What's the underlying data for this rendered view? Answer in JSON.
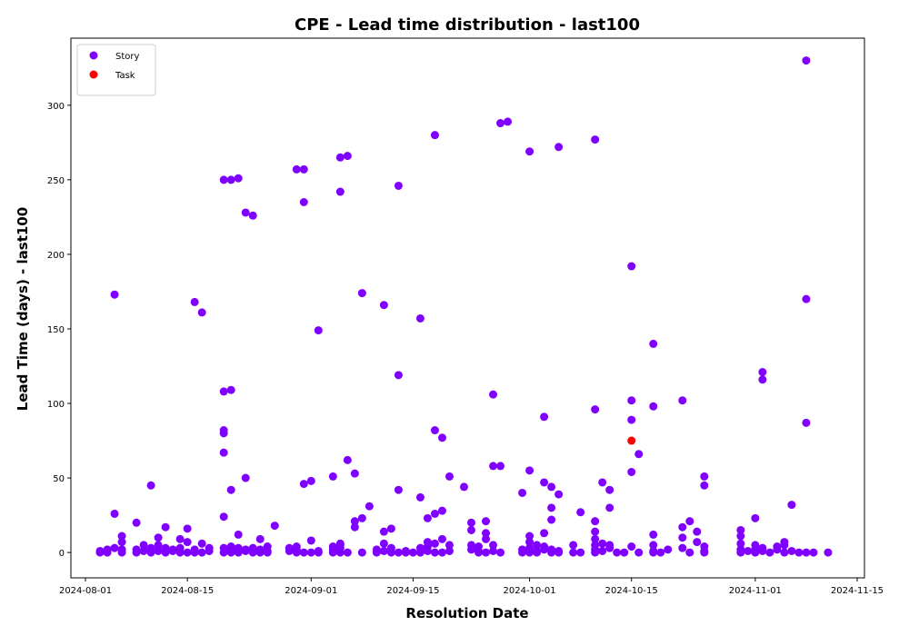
{
  "chart_data": {
    "type": "scatter",
    "title": "CPE - Lead time distribution - last100",
    "xlabel": "Resolution Date",
    "ylabel": "Lead Time (days) - last100",
    "x_axis": "date",
    "xlim": [
      "2024-07-30",
      "2024-11-16"
    ],
    "ylim": [
      -17,
      345
    ],
    "x_ticks": [
      "2024-08-01",
      "2024-08-15",
      "2024-09-01",
      "2024-09-15",
      "2024-10-01",
      "2024-10-15",
      "2024-11-01",
      "2024-11-15"
    ],
    "y_ticks": [
      0,
      50,
      100,
      150,
      200,
      250,
      300
    ],
    "grid": false,
    "legend_position": "top-left",
    "series": [
      {
        "name": "Story",
        "color": "#7f00ff",
        "points": [
          [
            "2024-08-03",
            0
          ],
          [
            "2024-08-03",
            1
          ],
          [
            "2024-08-04",
            2
          ],
          [
            "2024-08-04",
            0
          ],
          [
            "2024-08-05",
            3
          ],
          [
            "2024-08-05",
            26
          ],
          [
            "2024-08-05",
            173
          ],
          [
            "2024-08-06",
            2
          ],
          [
            "2024-08-06",
            7
          ],
          [
            "2024-08-06",
            11
          ],
          [
            "2024-08-06",
            0
          ],
          [
            "2024-08-08",
            0
          ],
          [
            "2024-08-08",
            20
          ],
          [
            "2024-08-08",
            2
          ],
          [
            "2024-08-09",
            5
          ],
          [
            "2024-08-09",
            1
          ],
          [
            "2024-08-10",
            0
          ],
          [
            "2024-08-10",
            3
          ],
          [
            "2024-08-10",
            45
          ],
          [
            "2024-08-10",
            2
          ],
          [
            "2024-08-11",
            10
          ],
          [
            "2024-08-11",
            5
          ],
          [
            "2024-08-11",
            1
          ],
          [
            "2024-08-12",
            17
          ],
          [
            "2024-08-12",
            0
          ],
          [
            "2024-08-12",
            3
          ],
          [
            "2024-08-13",
            1
          ],
          [
            "2024-08-13",
            2
          ],
          [
            "2024-08-14",
            0
          ],
          [
            "2024-08-14",
            9
          ],
          [
            "2024-08-14",
            3
          ],
          [
            "2024-08-15",
            0
          ],
          [
            "2024-08-15",
            16
          ],
          [
            "2024-08-15",
            7
          ],
          [
            "2024-08-16",
            168
          ],
          [
            "2024-08-16",
            0
          ],
          [
            "2024-08-16",
            2
          ],
          [
            "2024-08-17",
            161
          ],
          [
            "2024-08-17",
            6
          ],
          [
            "2024-08-17",
            0
          ],
          [
            "2024-08-18",
            1
          ],
          [
            "2024-08-18",
            3
          ],
          [
            "2024-08-20",
            24
          ],
          [
            "2024-08-20",
            80
          ],
          [
            "2024-08-20",
            82
          ],
          [
            "2024-08-20",
            67
          ],
          [
            "2024-08-20",
            108
          ],
          [
            "2024-08-20",
            250
          ],
          [
            "2024-08-20",
            0
          ],
          [
            "2024-08-20",
            3
          ],
          [
            "2024-08-21",
            109
          ],
          [
            "2024-08-21",
            42
          ],
          [
            "2024-08-21",
            250
          ],
          [
            "2024-08-21",
            2
          ],
          [
            "2024-08-21",
            4
          ],
          [
            "2024-08-21",
            0
          ],
          [
            "2024-08-22",
            251
          ],
          [
            "2024-08-22",
            12
          ],
          [
            "2024-08-22",
            0
          ],
          [
            "2024-08-22",
            3
          ],
          [
            "2024-08-23",
            228
          ],
          [
            "2024-08-23",
            50
          ],
          [
            "2024-08-23",
            1
          ],
          [
            "2024-08-23",
            2
          ],
          [
            "2024-08-24",
            226
          ],
          [
            "2024-08-24",
            0
          ],
          [
            "2024-08-24",
            3
          ],
          [
            "2024-08-25",
            9
          ],
          [
            "2024-08-25",
            0
          ],
          [
            "2024-08-25",
            2
          ],
          [
            "2024-08-26",
            4
          ],
          [
            "2024-08-26",
            1
          ],
          [
            "2024-08-26",
            0
          ],
          [
            "2024-08-27",
            18
          ],
          [
            "2024-08-29",
            1
          ],
          [
            "2024-08-29",
            3
          ],
          [
            "2024-08-30",
            257
          ],
          [
            "2024-08-30",
            0
          ],
          [
            "2024-08-30",
            4
          ],
          [
            "2024-08-30",
            2
          ],
          [
            "2024-08-31",
            257
          ],
          [
            "2024-08-31",
            235
          ],
          [
            "2024-08-31",
            46
          ],
          [
            "2024-08-31",
            0
          ],
          [
            "2024-09-01",
            0
          ],
          [
            "2024-09-01",
            48
          ],
          [
            "2024-09-01",
            8
          ],
          [
            "2024-09-02",
            149
          ],
          [
            "2024-09-02",
            1
          ],
          [
            "2024-09-02",
            0
          ],
          [
            "2024-09-04",
            51
          ],
          [
            "2024-09-04",
            0
          ],
          [
            "2024-09-04",
            4
          ],
          [
            "2024-09-04",
            2
          ],
          [
            "2024-09-05",
            265
          ],
          [
            "2024-09-05",
            242
          ],
          [
            "2024-09-05",
            5
          ],
          [
            "2024-09-05",
            0
          ],
          [
            "2024-09-05",
            3
          ],
          [
            "2024-09-05",
            6
          ],
          [
            "2024-09-06",
            266
          ],
          [
            "2024-09-06",
            62
          ],
          [
            "2024-09-06",
            0
          ],
          [
            "2024-09-07",
            53
          ],
          [
            "2024-09-07",
            21
          ],
          [
            "2024-09-07",
            17
          ],
          [
            "2024-09-08",
            23
          ],
          [
            "2024-09-08",
            0
          ],
          [
            "2024-09-08",
            174
          ],
          [
            "2024-09-09",
            31
          ],
          [
            "2024-09-10",
            2
          ],
          [
            "2024-09-10",
            0
          ],
          [
            "2024-09-11",
            1
          ],
          [
            "2024-09-11",
            166
          ],
          [
            "2024-09-11",
            6
          ],
          [
            "2024-09-11",
            14
          ],
          [
            "2024-09-12",
            0
          ],
          [
            "2024-09-12",
            16
          ],
          [
            "2024-09-12",
            3
          ],
          [
            "2024-09-13",
            119
          ],
          [
            "2024-09-13",
            246
          ],
          [
            "2024-09-13",
            42
          ],
          [
            "2024-09-13",
            0
          ],
          [
            "2024-09-14",
            1
          ],
          [
            "2024-09-14",
            0
          ],
          [
            "2024-09-15",
            0
          ],
          [
            "2024-09-16",
            157
          ],
          [
            "2024-09-16",
            37
          ],
          [
            "2024-09-16",
            3
          ],
          [
            "2024-09-16",
            0
          ],
          [
            "2024-09-17",
            7
          ],
          [
            "2024-09-17",
            23
          ],
          [
            "2024-09-17",
            1
          ],
          [
            "2024-09-17",
            4
          ],
          [
            "2024-09-18",
            280
          ],
          [
            "2024-09-18",
            82
          ],
          [
            "2024-09-18",
            26
          ],
          [
            "2024-09-18",
            6
          ],
          [
            "2024-09-18",
            0
          ],
          [
            "2024-09-19",
            77
          ],
          [
            "2024-09-19",
            28
          ],
          [
            "2024-09-19",
            9
          ],
          [
            "2024-09-19",
            0
          ],
          [
            "2024-09-20",
            51
          ],
          [
            "2024-09-20",
            5
          ],
          [
            "2024-09-20",
            1
          ],
          [
            "2024-09-22",
            44
          ],
          [
            "2024-09-23",
            20
          ],
          [
            "2024-09-23",
            15
          ],
          [
            "2024-09-23",
            2
          ],
          [
            "2024-09-23",
            5
          ],
          [
            "2024-09-24",
            0
          ],
          [
            "2024-09-24",
            4
          ],
          [
            "2024-09-24",
            1
          ],
          [
            "2024-09-25",
            21
          ],
          [
            "2024-09-25",
            13
          ],
          [
            "2024-09-25",
            9
          ],
          [
            "2024-09-25",
            0
          ],
          [
            "2024-09-26",
            106
          ],
          [
            "2024-09-26",
            58
          ],
          [
            "2024-09-26",
            5
          ],
          [
            "2024-09-26",
            1
          ],
          [
            "2024-09-27",
            58
          ],
          [
            "2024-09-27",
            0
          ],
          [
            "2024-09-27",
            288
          ],
          [
            "2024-09-28",
            289
          ],
          [
            "2024-09-30",
            40
          ],
          [
            "2024-09-30",
            2
          ],
          [
            "2024-09-30",
            0
          ],
          [
            "2024-10-01",
            269
          ],
          [
            "2024-10-01",
            55
          ],
          [
            "2024-10-01",
            11
          ],
          [
            "2024-10-01",
            7
          ],
          [
            "2024-10-01",
            3
          ],
          [
            "2024-10-01",
            0
          ],
          [
            "2024-10-02",
            5
          ],
          [
            "2024-10-02",
            1
          ],
          [
            "2024-10-02",
            0
          ],
          [
            "2024-10-03",
            91
          ],
          [
            "2024-10-03",
            47
          ],
          [
            "2024-10-03",
            13
          ],
          [
            "2024-10-03",
            4
          ],
          [
            "2024-10-03",
            2
          ],
          [
            "2024-10-04",
            44
          ],
          [
            "2024-10-04",
            30
          ],
          [
            "2024-10-04",
            22
          ],
          [
            "2024-10-04",
            0
          ],
          [
            "2024-10-04",
            2
          ],
          [
            "2024-10-05",
            272
          ],
          [
            "2024-10-05",
            39
          ],
          [
            "2024-10-05",
            1
          ],
          [
            "2024-10-05",
            0
          ],
          [
            "2024-10-07",
            5
          ],
          [
            "2024-10-07",
            0
          ],
          [
            "2024-10-08",
            27
          ],
          [
            "2024-10-08",
            0
          ],
          [
            "2024-10-10",
            277
          ],
          [
            "2024-10-10",
            96
          ],
          [
            "2024-10-10",
            21
          ],
          [
            "2024-10-10",
            14
          ],
          [
            "2024-10-10",
            9
          ],
          [
            "2024-10-10",
            5
          ],
          [
            "2024-10-10",
            2
          ],
          [
            "2024-10-10",
            0
          ],
          [
            "2024-10-11",
            47
          ],
          [
            "2024-10-11",
            6
          ],
          [
            "2024-10-11",
            1
          ],
          [
            "2024-10-12",
            42
          ],
          [
            "2024-10-12",
            30
          ],
          [
            "2024-10-12",
            5
          ],
          [
            "2024-10-12",
            3
          ],
          [
            "2024-10-13",
            0
          ],
          [
            "2024-10-14",
            0
          ],
          [
            "2024-10-15",
            192
          ],
          [
            "2024-10-15",
            89
          ],
          [
            "2024-10-15",
            54
          ],
          [
            "2024-10-15",
            4
          ],
          [
            "2024-10-15",
            102
          ],
          [
            "2024-10-16",
            66
          ],
          [
            "2024-10-16",
            0
          ],
          [
            "2024-10-18",
            98
          ],
          [
            "2024-10-18",
            12
          ],
          [
            "2024-10-18",
            5
          ],
          [
            "2024-10-18",
            1
          ],
          [
            "2024-10-18",
            0
          ],
          [
            "2024-10-18",
            140
          ],
          [
            "2024-10-19",
            0
          ],
          [
            "2024-10-20",
            2
          ],
          [
            "2024-10-22",
            17
          ],
          [
            "2024-10-22",
            10
          ],
          [
            "2024-10-22",
            3
          ],
          [
            "2024-10-22",
            102
          ],
          [
            "2024-10-23",
            21
          ],
          [
            "2024-10-23",
            0
          ],
          [
            "2024-10-24",
            14
          ],
          [
            "2024-10-24",
            7
          ],
          [
            "2024-10-25",
            51
          ],
          [
            "2024-10-25",
            45
          ],
          [
            "2024-10-25",
            4
          ],
          [
            "2024-10-25",
            1
          ],
          [
            "2024-10-25",
            0
          ],
          [
            "2024-10-30",
            15
          ],
          [
            "2024-10-30",
            11
          ],
          [
            "2024-10-30",
            6
          ],
          [
            "2024-10-30",
            2
          ],
          [
            "2024-10-30",
            0
          ],
          [
            "2024-10-31",
            1
          ],
          [
            "2024-11-01",
            23
          ],
          [
            "2024-11-01",
            5
          ],
          [
            "2024-11-01",
            2
          ],
          [
            "2024-11-01",
            0
          ],
          [
            "2024-11-02",
            121
          ],
          [
            "2024-11-02",
            116
          ],
          [
            "2024-11-02",
            3
          ],
          [
            "2024-11-02",
            1
          ],
          [
            "2024-11-03",
            0
          ],
          [
            "2024-11-04",
            4
          ],
          [
            "2024-11-04",
            2
          ],
          [
            "2024-11-05",
            7
          ],
          [
            "2024-11-05",
            5
          ],
          [
            "2024-11-05",
            0
          ],
          [
            "2024-11-06",
            32
          ],
          [
            "2024-11-06",
            1
          ],
          [
            "2024-11-07",
            0
          ],
          [
            "2024-11-08",
            330
          ],
          [
            "2024-11-08",
            170
          ],
          [
            "2024-11-08",
            87
          ],
          [
            "2024-11-08",
            0
          ],
          [
            "2024-11-09",
            0
          ],
          [
            "2024-11-11",
            0
          ]
        ]
      },
      {
        "name": "Task",
        "color": "#ff0000",
        "points": [
          [
            "2024-10-15",
            75
          ]
        ]
      }
    ]
  }
}
